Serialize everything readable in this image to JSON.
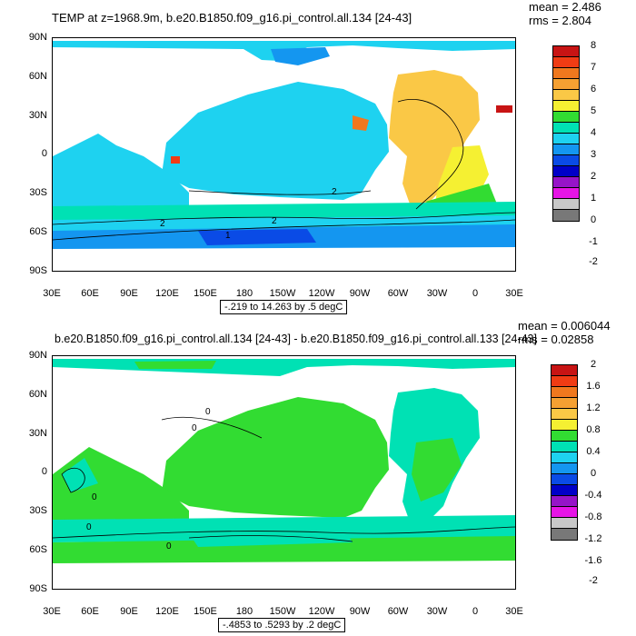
{
  "panels": [
    {
      "title": "TEMP at z=1968.9m, b.e20.B1850.f09_g16.pi_control.all.134 [24-43]",
      "mean": "mean = 2.486",
      "rms": "rms = 2.804",
      "range_label": "-.219 to 14.263 by .5 degC",
      "colorbar_labels": [
        "8",
        "7",
        "6",
        "5",
        "4",
        "3",
        "2",
        "1",
        "0",
        "-1",
        "-2"
      ],
      "colors": [
        "#c81414",
        "#f03c14",
        "#f0781e",
        "#f5a032",
        "#fac846",
        "#f5f032",
        "#32dc32",
        "#00e1b4",
        "#1ed2f0",
        "#1496f0",
        "#0a4be6",
        "#0000c8",
        "#9614c8",
        "#e614e6",
        "#c8c8c8",
        "#787878"
      ],
      "ocean_colors": {
        "pacific": "#1ed2f0",
        "atlantic": "#fac846",
        "southern": "#1496f0"
      }
    },
    {
      "title": "b.e20.B1850.f09_g16.pi_control.all.134 [24-43] - b.e20.B1850.f09_g16.pi_control.all.133 [24-43]",
      "mean": "mean = 0.006044",
      "rms": "rms = 0.02858",
      "range_label": "-.4853 to .5293 by .2 degC",
      "colorbar_labels": [
        "2",
        "1.6",
        "1.2",
        "0.8",
        "0.4",
        "0",
        "-0.4",
        "-0.8",
        "-1.2",
        "-1.6",
        "-2"
      ],
      "colors": [
        "#c81414",
        "#f03c14",
        "#f0781e",
        "#f5a032",
        "#fac846",
        "#f5f032",
        "#32dc32",
        "#00e1b4",
        "#1ed2f0",
        "#1496f0",
        "#0a4be6",
        "#0000c8",
        "#9614c8",
        "#e614e6",
        "#c8c8c8",
        "#787878"
      ],
      "ocean_colors": {
        "main": "#32dc32",
        "alt": "#00e1b4"
      }
    }
  ],
  "lat_labels": [
    "90N",
    "60N",
    "30N",
    "0",
    "30S",
    "60S",
    "90S"
  ],
  "lon_labels": [
    "30E",
    "60E",
    "90E",
    "120E",
    "150E",
    "180",
    "150W",
    "120W",
    "90W",
    "60W",
    "30W",
    "0",
    "30E"
  ],
  "contour_labels_top": [
    "2",
    "2",
    "2",
    "1"
  ],
  "contour_labels_bottom": [
    "0",
    "0",
    "0",
    "0",
    "0"
  ]
}
